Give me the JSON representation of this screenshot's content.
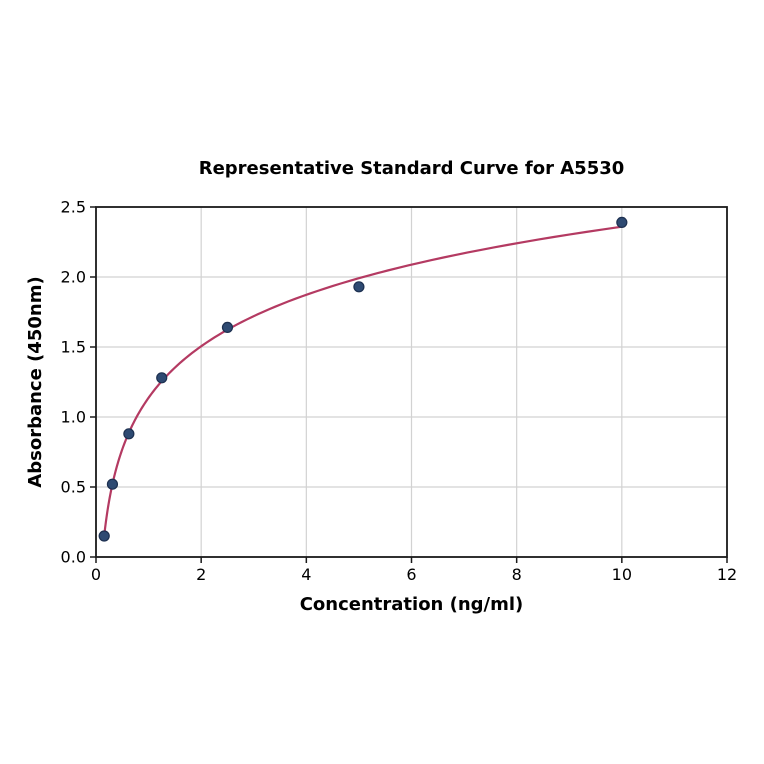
{
  "chart_data": {
    "type": "scatter",
    "title": "Representative Standard Curve for A5530",
    "xlabel": "Concentration (ng/ml)",
    "ylabel": "Absorbance (450nm)",
    "series": [
      {
        "name": "standard-curve-points",
        "x": [
          0.156,
          0.3125,
          0.625,
          1.25,
          2.5,
          5,
          10
        ],
        "y": [
          0.15,
          0.52,
          0.88,
          1.28,
          1.64,
          1.93,
          2.39
        ]
      }
    ],
    "fit": "logarithmic",
    "xlim": [
      0,
      12
    ],
    "ylim": [
      0,
      2.5
    ],
    "xticks": [
      0,
      2,
      4,
      6,
      8,
      10,
      12
    ],
    "xtick_labels": [
      "0",
      "2",
      "4",
      "6",
      "8",
      "10",
      "12"
    ],
    "yticks": [
      0,
      0.5,
      1.0,
      1.5,
      2.0,
      2.5
    ],
    "ytick_labels": [
      "0.0",
      "0.5",
      "1.0",
      "1.5",
      "2.0",
      "2.5"
    ],
    "grid": true,
    "legend": "none",
    "colors": {
      "curve": "#b43a62",
      "marker_fill": "#2e4a72",
      "marker_edge": "#1d3050",
      "grid": "#d2d2d2",
      "axis": "#1a1a1a",
      "text": "#000000",
      "background": "#ffffff"
    }
  }
}
